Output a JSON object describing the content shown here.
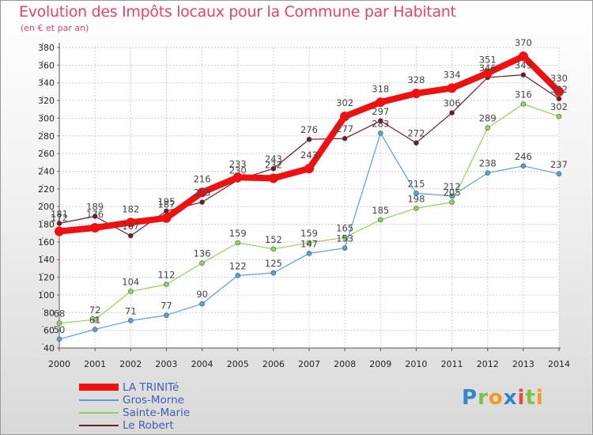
{
  "colors": {
    "accent": "#e0456a"
  },
  "logo": {
    "letters": [
      "P",
      "r",
      "o",
      "x",
      "i",
      "t",
      "i"
    ],
    "colors": [
      "#2f86c8",
      "#7cc242",
      "#f39a1e",
      "#2f86c8",
      "#e84a3c",
      "#7cc242",
      "#f39a1e"
    ]
  },
  "chart_data": {
    "type": "line",
    "title": "Evolution des Impôts locaux pour la Commune par Habitant",
    "subtitle": "(en € et par an)",
    "x": [
      2000,
      2001,
      2002,
      2003,
      2004,
      2005,
      2006,
      2007,
      2008,
      2009,
      2010,
      2011,
      2012,
      2013,
      2014
    ],
    "ylim": [
      40,
      380
    ],
    "yticks": [
      40,
      60,
      80,
      100,
      120,
      140,
      160,
      180,
      200,
      220,
      240,
      260,
      280,
      300,
      320,
      340,
      360,
      380
    ],
    "grid": true,
    "legend_position": "bottom-left",
    "series": [
      {
        "name": "Le Robert",
        "color": "#6e1a28",
        "values": [
          181,
          189,
          167,
          195,
          205,
          230,
          243,
          276,
          277,
          297,
          272,
          306,
          346,
          349,
          322
        ]
      },
      {
        "name": "Sainte-Marie",
        "color": "#8fd45a",
        "values": [
          68,
          72,
          104,
          112,
          136,
          159,
          152,
          159,
          165,
          185,
          198,
          205,
          289,
          316,
          302
        ]
      },
      {
        "name": "Gros-Morne",
        "color": "#5aa0d6",
        "values": [
          50,
          61,
          71,
          77,
          90,
          122,
          125,
          147,
          153,
          283,
          215,
          212,
          238,
          246,
          237
        ]
      },
      {
        "name": "LA TRINITé",
        "color": "#ee1111",
        "values": [
          172,
          176,
          182,
          187,
          216,
          233,
          232,
          243,
          302,
          318,
          328,
          334,
          351,
          370,
          330
        ]
      }
    ],
    "legend_order": [
      "LA TRINITé",
      "Gros-Morne",
      "Sainte-Marie",
      "Le Robert"
    ]
  }
}
